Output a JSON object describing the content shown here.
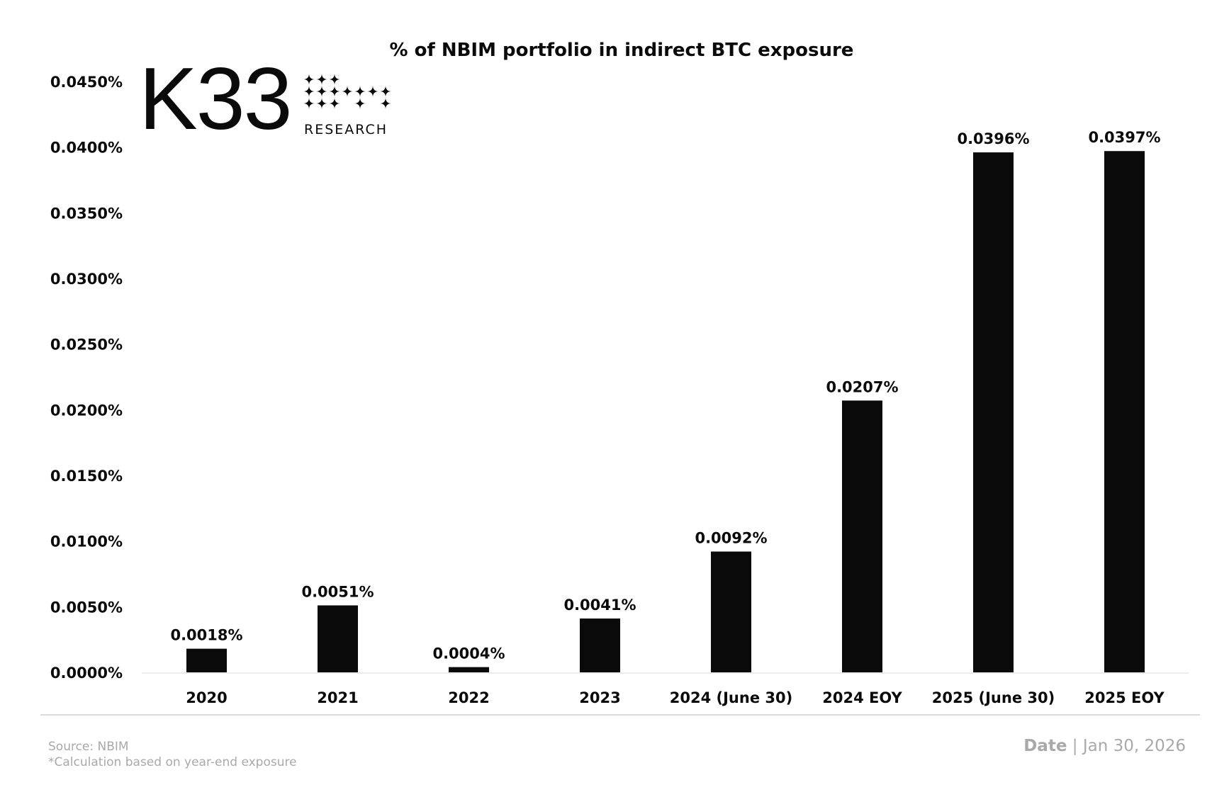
{
  "chart_data": {
    "type": "bar",
    "title": "% of NBIM portfolio in indirect BTC exposure",
    "categories": [
      "2020",
      "2021",
      "2022",
      "2023",
      "2024 (June 30)",
      "2024 EOY",
      "2025 (June 30)",
      "2025 EOY"
    ],
    "values": [
      0.0018,
      0.0051,
      0.0004,
      0.0041,
      0.0092,
      0.0207,
      0.0396,
      0.0397
    ],
    "data_labels": [
      "0.0018%",
      "0.0051%",
      "0.0004%",
      "0.0041%",
      "0.0092%",
      "0.0207%",
      "0.0396%",
      "0.0397%"
    ],
    "xlabel": "",
    "ylabel": "",
    "ylim": [
      0,
      0.045
    ],
    "yticks": [
      "0.0000%",
      "0.0050%",
      "0.0100%",
      "0.0150%",
      "0.0200%",
      "0.0250%",
      "0.0300%",
      "0.0350%",
      "0.0400%",
      "0.0450%"
    ],
    "grid": false,
    "bar_color": "#0a0a0a"
  },
  "logo": {
    "brand": "K33",
    "sub": "RESEARCH"
  },
  "footer": {
    "source": "Source:  NBIM",
    "footnote": "*Calculation based on year-end exposure",
    "date_label": "Date",
    "date_sep": " | ",
    "date_value": "Jan 30, 2026"
  }
}
